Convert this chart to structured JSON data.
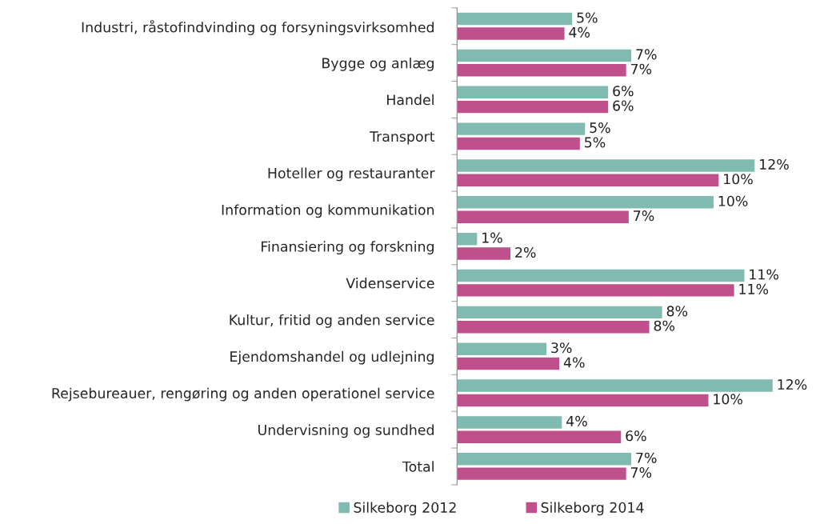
{
  "chart_data": {
    "type": "bar",
    "orientation": "horizontal",
    "categories": [
      "Industri, råstofindvinding og forsyningsvirksomhed",
      "Bygge og anlæg",
      "Handel",
      "Transport",
      "Hoteller og restauranter",
      "Information og kommunikation",
      "Finansiering og forskning",
      "Videnservice",
      "Kultur, fritid og anden service",
      "Ejendomshandel og udlejning",
      "Rejsebureauer, rengøring og anden operationel service",
      "Undervisning og sundhed",
      "Total"
    ],
    "series": [
      {
        "name": "Silkeborg 2012",
        "color": "#80bab1",
        "values": [
          4.5,
          6.8,
          5.9,
          5.0,
          11.6,
          10.0,
          0.8,
          11.2,
          8.0,
          3.5,
          12.3,
          4.1,
          6.8
        ],
        "value_labels": [
          "5%",
          "7%",
          "6%",
          "5%",
          "12%",
          "10%",
          "1%",
          "11%",
          "8%",
          "3%",
          "12%",
          "4%",
          "7%"
        ]
      },
      {
        "name": "Silkeborg 2014",
        "color": "#c0508c",
        "values": [
          4.2,
          6.6,
          5.9,
          4.8,
          10.2,
          6.7,
          2.1,
          10.8,
          7.5,
          4.0,
          9.8,
          6.4,
          6.6
        ],
        "value_labels": [
          "4%",
          "7%",
          "6%",
          "5%",
          "10%",
          "7%",
          "2%",
          "11%",
          "8%",
          "4%",
          "10%",
          "6%",
          "7%"
        ]
      }
    ],
    "legend": "bottom",
    "grid": false
  }
}
